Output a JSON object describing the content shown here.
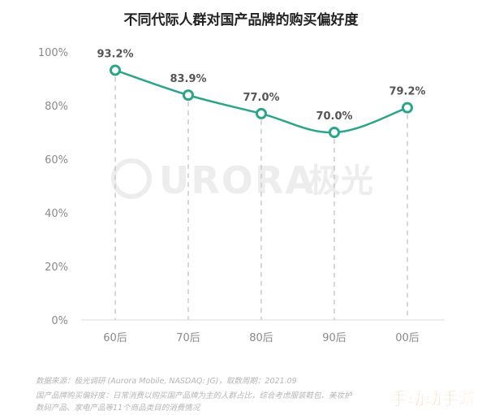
{
  "chart_data": {
    "type": "line",
    "title": "不同代际人群对国产品牌的购买偏好度",
    "categories": [
      "60后",
      "70后",
      "80后",
      "90后",
      "00后"
    ],
    "series": [
      {
        "values": [
          93.2,
          83.9,
          77.0,
          70.0,
          79.2
        ]
      }
    ],
    "data_labels": [
      "93.2%",
      "83.9%",
      "77.0%",
      "70.0%",
      "79.2%"
    ],
    "y_ticks": [
      "0%",
      "20%",
      "40%",
      "60%",
      "80%",
      "100%"
    ],
    "ylim": [
      0,
      100
    ],
    "grid": false,
    "vertical_dashed_guides": true,
    "colors": {
      "line": "#2aa58a",
      "marker_fill": "#ffffff",
      "guide": "#c8c8c8"
    }
  },
  "watermark": {
    "text": "URORA",
    "cn": "极光"
  },
  "notes": [
    "数据来源：极光调研 (Aurora Mobile, NASDAQ: JG)，取数周期：2021.09",
    "国产品牌购买偏好度：日常消费以购买国产品牌为主的人群占比，综合考虑服装鞋包、美妆护",
    "数码产品、家电产品等11个商品类目的消费情况"
  ],
  "corner_badge": "手动动手游"
}
